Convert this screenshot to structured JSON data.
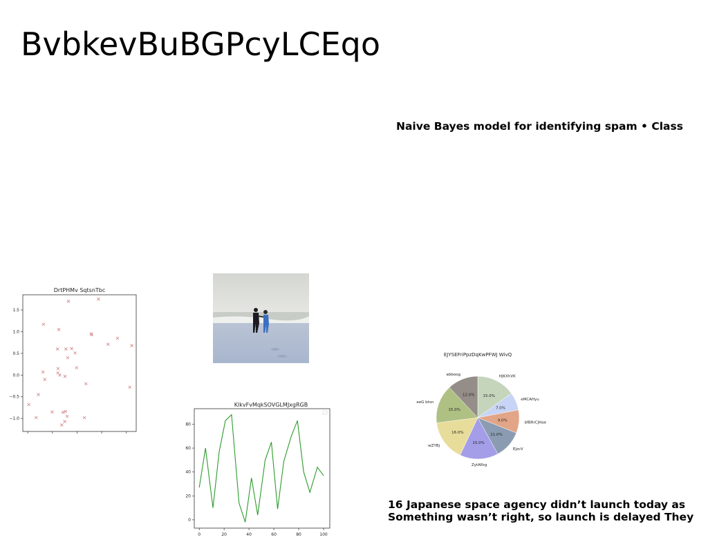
{
  "page": {
    "title": "BvbkevBuBGPcyLCEqo",
    "subtitle": "Naive Bayes model for identifying spam • Class",
    "caption_line1": "16 Japanese space agency didn’t launch today as",
    "caption_line2": "Something wasn’t right, so launch is delayed They"
  },
  "chart_data": [
    {
      "type": "scatter",
      "title": "DrtPHMv SqtsnTbc",
      "marker": "x",
      "color": "#d08080",
      "xlim": [
        -2.2,
        2.4
      ],
      "ylim": [
        -1.3,
        1.85
      ],
      "xticks": [
        -2,
        -1,
        0,
        1,
        2
      ],
      "yticks": [
        -1.0,
        -0.5,
        0.0,
        0.5,
        1.0,
        1.5
      ],
      "points": [
        [
          -0.35,
          1.7
        ],
        [
          0.87,
          1.75
        ],
        [
          -1.36,
          1.17
        ],
        [
          -0.74,
          1.05
        ],
        [
          0.57,
          0.95
        ],
        [
          0.6,
          0.93
        ],
        [
          1.64,
          0.85
        ],
        [
          1.26,
          0.71
        ],
        [
          2.22,
          0.68
        ],
        [
          -0.79,
          0.6
        ],
        [
          -0.45,
          0.6
        ],
        [
          -0.22,
          0.61
        ],
        [
          -0.08,
          0.51
        ],
        [
          -0.38,
          0.4
        ],
        [
          -1.38,
          0.07
        ],
        [
          -0.77,
          0.15
        ],
        [
          -0.78,
          0.05
        ],
        [
          -0.7,
          0.0
        ],
        [
          -0.49,
          -0.03
        ],
        [
          -1.31,
          -0.1
        ],
        [
          -0.02,
          0.17
        ],
        [
          0.36,
          -0.2
        ],
        [
          2.14,
          -0.28
        ],
        [
          -1.57,
          -0.45
        ],
        [
          -1.96,
          -0.68
        ],
        [
          -1.01,
          -0.85
        ],
        [
          -0.57,
          -0.86
        ],
        [
          -0.47,
          -0.84
        ],
        [
          -0.4,
          -0.95
        ],
        [
          -1.66,
          -0.98
        ],
        [
          0.3,
          -0.98
        ],
        [
          -0.5,
          -1.07
        ],
        [
          -0.62,
          -1.15
        ]
      ]
    },
    {
      "type": "line",
      "title": "KlkvFvMqkSOVGLMJxgRGB",
      "color": "#2a9a2a",
      "xlim": [
        -4,
        105
      ],
      "ylim": [
        -7,
        93
      ],
      "xticks": [
        0,
        20,
        40,
        60,
        80,
        100
      ],
      "yticks": [
        0,
        20,
        40,
        60,
        80
      ],
      "x": [
        0,
        5,
        11,
        16,
        21,
        26,
        32,
        37,
        42,
        47,
        53,
        58,
        63,
        68,
        74,
        79,
        84,
        89,
        95,
        100
      ],
      "y": [
        27,
        60,
        10,
        57,
        83,
        88,
        14,
        -2,
        35,
        4,
        50,
        65,
        9,
        49,
        70,
        83,
        40,
        23,
        44,
        37
      ]
    },
    {
      "type": "pie",
      "title": "EJYSEFriPpzDqKwPFWJ WivQ",
      "slices": [
        {
          "label": "HJKXhVK",
          "value": 15.0,
          "pct": "15.0%",
          "color": "#c5d5bb"
        },
        {
          "label": "eMCAHyu",
          "value": 7.0,
          "pct": "7.0%",
          "color": "#c8d4f5"
        },
        {
          "label": "bfBRrCJHae",
          "value": 9.0,
          "pct": "9.0%",
          "color": "#e2a587"
        },
        {
          "label": "EJzcV",
          "value": 11.0,
          "pct": "11.0%",
          "color": "#8b9cb2"
        },
        {
          "label": "ZytARrg",
          "value": 15.0,
          "pct": "15.0%",
          "color": "#a49ee8"
        },
        {
          "label": "wZYBj",
          "value": 16.0,
          "pct": "16.0%",
          "color": "#e8dc9a"
        },
        {
          "label": "eeG btsn",
          "value": 15.0,
          "pct": "15.0%",
          "color": "#afc083"
        },
        {
          "label": "abboog",
          "value": 12.0,
          "pct": "12.0%",
          "color": "#948d88"
        }
      ]
    }
  ]
}
